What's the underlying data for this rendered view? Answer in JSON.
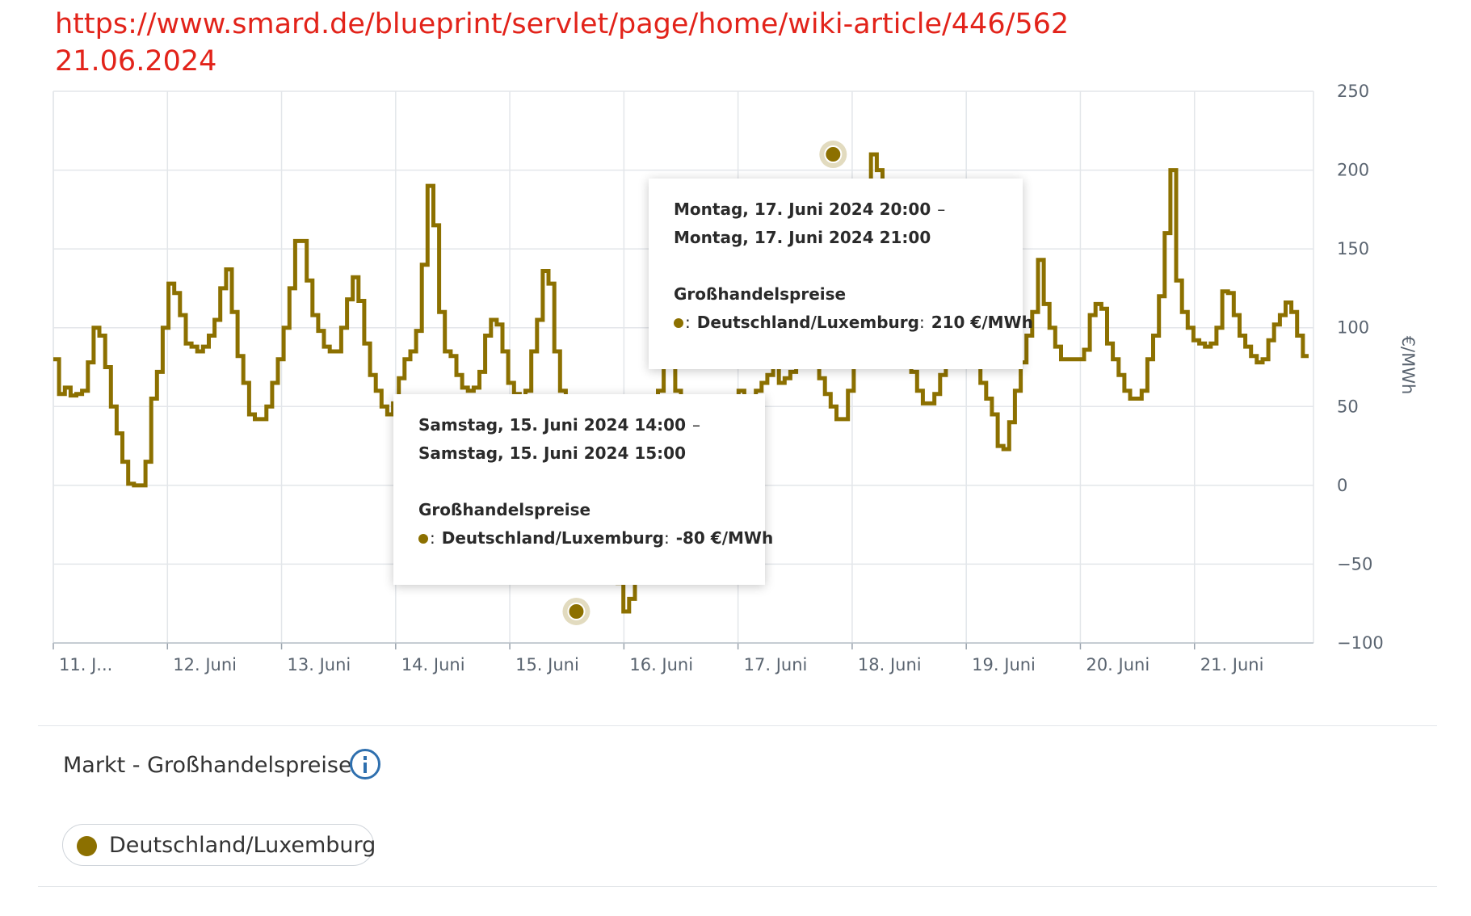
{
  "header": {
    "url": "https://www.smard.de/blueprint/servlet/page/home/wiki-article/446/562",
    "date": "21.06.2024"
  },
  "colors": {
    "series": "#8c7000",
    "annotation": "#e2231a",
    "grid": "#e3e6ea",
    "axis_text": "#5a6470",
    "info_icon": "#2e6fae"
  },
  "chart_data": {
    "type": "line",
    "step": true,
    "ylabel": "€/MWh",
    "ylim": [
      -100,
      250
    ],
    "yticks": [
      250,
      200,
      150,
      100,
      50,
      0,
      -50,
      -100
    ],
    "xlim": [
      0,
      11
    ],
    "xticks": [
      {
        "x": 0,
        "label": "11. J..."
      },
      {
        "x": 1,
        "label": "12. Juni"
      },
      {
        "x": 2,
        "label": "13. Juni"
      },
      {
        "x": 3,
        "label": "14. Juni"
      },
      {
        "x": 4,
        "label": "15. Juni"
      },
      {
        "x": 5,
        "label": "16. Juni"
      },
      {
        "x": 6,
        "label": "17. Juni"
      },
      {
        "x": 7,
        "label": "18. Juni"
      },
      {
        "x": 8,
        "label": "19. Juni"
      },
      {
        "x": 9,
        "label": "20. Juni"
      },
      {
        "x": 10,
        "label": "21. Juni"
      }
    ],
    "grid": true,
    "series": [
      {
        "name": "Deutschland/Luxemburg",
        "color": "#8c7000",
        "values": [
          80,
          58,
          62,
          57,
          58,
          60,
          78,
          100,
          95,
          75,
          50,
          33,
          15,
          1,
          0,
          0,
          15,
          55,
          72,
          100,
          128,
          122,
          108,
          90,
          88,
          85,
          88,
          95,
          105,
          125,
          137,
          110,
          82,
          65,
          45,
          42,
          42,
          50,
          65,
          80,
          100,
          125,
          155,
          155,
          130,
          108,
          98,
          88,
          85,
          85,
          100,
          118,
          132,
          117,
          90,
          70,
          60,
          50,
          45,
          52,
          68,
          80,
          85,
          98,
          140,
          190,
          165,
          110,
          85,
          82,
          70,
          62,
          60,
          62,
          72,
          95,
          105,
          102,
          85,
          65,
          58,
          55,
          60,
          85,
          105,
          136,
          128,
          85,
          60,
          55,
          50,
          40,
          30,
          20,
          15,
          0,
          -20,
          -50,
          -62,
          -80,
          -72,
          -40,
          -10,
          15,
          40,
          60,
          85,
          80,
          60,
          55,
          50,
          45,
          40,
          30,
          20,
          10,
          0,
          30,
          55,
          60,
          55,
          50,
          60,
          65,
          70,
          100,
          65,
          68,
          72,
          75,
          90,
          95,
          80,
          68,
          58,
          50,
          42,
          42,
          60,
          80,
          120,
          168,
          210,
          200,
          180,
          150,
          120,
          100,
          85,
          72,
          60,
          52,
          52,
          58,
          70,
          80,
          85,
          90,
          95,
          85,
          75,
          65,
          55,
          45,
          25,
          23,
          40,
          60,
          78,
          95,
          110,
          143,
          115,
          100,
          88,
          80,
          80,
          80,
          80,
          86,
          108,
          115,
          112,
          90,
          80,
          70,
          60,
          55,
          55,
          60,
          80,
          95,
          120,
          160,
          200,
          130,
          110,
          100,
          92,
          90,
          88,
          90,
          100,
          123,
          122,
          108,
          95,
          88,
          82,
          78,
          80,
          92,
          102,
          108,
          116,
          110,
          95,
          82
        ]
      }
    ],
    "markers": [
      {
        "x": 4.583,
        "y": -80
      },
      {
        "x": 6.833,
        "y": 210
      }
    ],
    "tooltips": [
      {
        "period_start": "Samstag, 15. Juni 2024 14:00",
        "dash": "–",
        "period_end": "Samstag, 15. Juni 2024 15:00",
        "category": "Großhandelspreise",
        "series": "Deutschland/Luxemburg",
        "value": "-80 €/MWh"
      },
      {
        "period_start": "Montag, 17. Juni 2024 20:00",
        "dash": "–",
        "period_end": "Montag, 17. Juni 2024 21:00",
        "category": "Großhandelspreise",
        "series": "Deutschland/Luxemburg",
        "value": "210 €/MWh"
      }
    ]
  },
  "panel": {
    "title": "Markt - Großhandelspreise",
    "legend_label": "Deutschland/Luxemburg"
  }
}
